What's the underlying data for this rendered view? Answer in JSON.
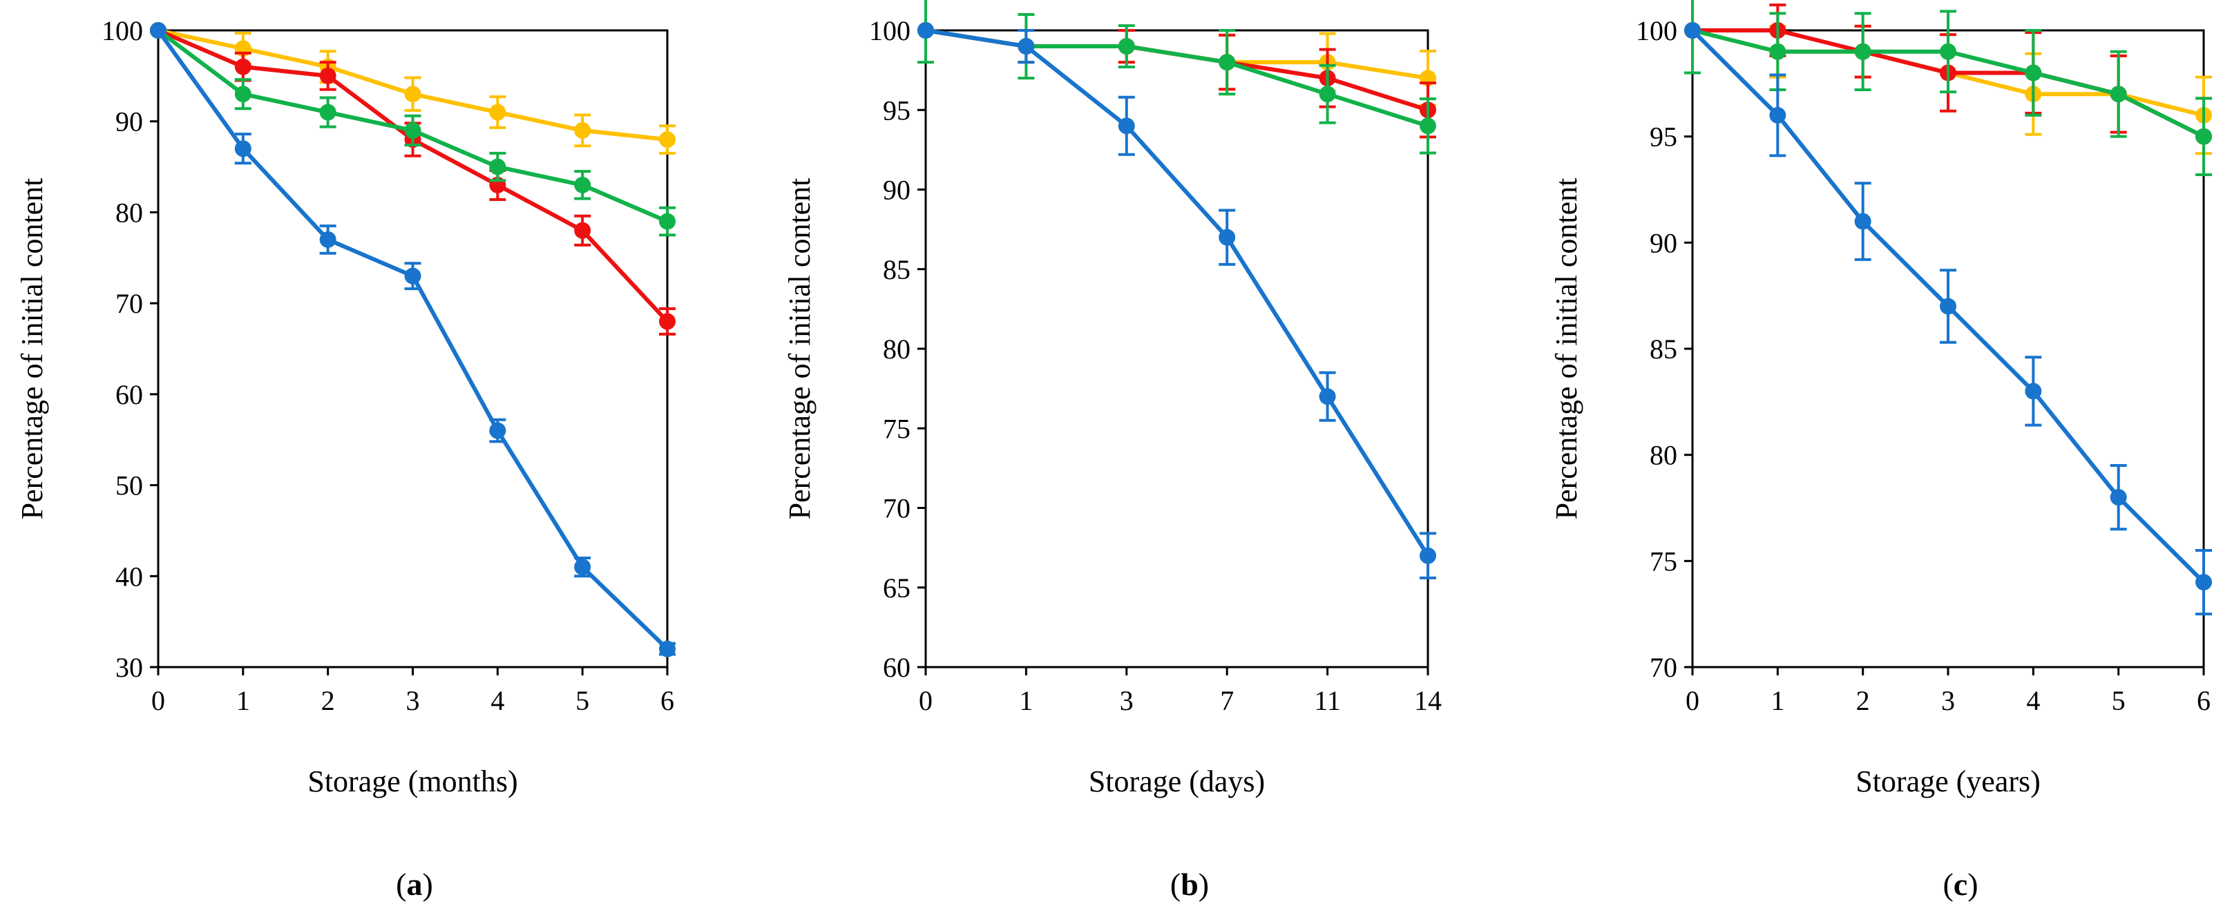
{
  "colors": {
    "blue": "#1874cd",
    "red": "#ee1111",
    "yellow": "#ffc000",
    "green": "#12b24a"
  },
  "chart_data": [
    {
      "panel": "a",
      "type": "line",
      "xlabel": "Storage (months)",
      "ylabel": "Percentage of initial content",
      "x_ticks": [
        "0",
        "1",
        "2",
        "3",
        "4",
        "5",
        "6"
      ],
      "y_ticks": [
        30,
        40,
        50,
        60,
        70,
        80,
        90,
        100
      ],
      "ylim": [
        30,
        100
      ],
      "series": [
        {
          "color": "yellow",
          "values": [
            100,
            98,
            96,
            93,
            91,
            89,
            88
          ],
          "errors": [
            0,
            1.7,
            1.7,
            1.8,
            1.7,
            1.7,
            1.5
          ]
        },
        {
          "color": "red",
          "values": [
            100,
            96,
            95,
            88,
            83,
            78,
            68
          ],
          "errors": [
            0,
            1.5,
            1.5,
            1.8,
            1.6,
            1.6,
            1.4
          ]
        },
        {
          "color": "green",
          "values": [
            100,
            93,
            91,
            89,
            85,
            83,
            79
          ],
          "errors": [
            0,
            1.6,
            1.6,
            1.6,
            1.5,
            1.5,
            1.5
          ]
        },
        {
          "color": "blue",
          "values": [
            100,
            87,
            77,
            73,
            56,
            41,
            32
          ],
          "errors": [
            0,
            1.6,
            1.5,
            1.4,
            1.2,
            1.0,
            0.6
          ]
        }
      ]
    },
    {
      "panel": "b",
      "type": "line",
      "xlabel": "Storage (days)",
      "ylabel": "Percentage of initial content",
      "x_ticks": [
        "0",
        "1",
        "3",
        "7",
        "11",
        "14"
      ],
      "y_ticks": [
        60,
        65,
        70,
        75,
        80,
        85,
        90,
        95,
        100
      ],
      "ylim": [
        60,
        100
      ],
      "series": [
        {
          "color": "yellow",
          "values": [
            100,
            99,
            99,
            98,
            98,
            97
          ],
          "errors": [
            0,
            1.0,
            1.0,
            1.7,
            1.8,
            1.7
          ]
        },
        {
          "color": "red",
          "values": [
            100,
            99,
            99,
            98,
            97,
            95
          ],
          "errors": [
            0,
            1.0,
            1.0,
            1.7,
            1.8,
            1.7
          ]
        },
        {
          "color": "green",
          "values": [
            100,
            99,
            99,
            98,
            96,
            94
          ],
          "errors": [
            2.0,
            2.0,
            1.3,
            2.0,
            1.8,
            1.7
          ]
        },
        {
          "color": "blue",
          "values": [
            100,
            99,
            94,
            87,
            77,
            67
          ],
          "errors": [
            0,
            1.0,
            1.8,
            1.7,
            1.5,
            1.4
          ]
        }
      ]
    },
    {
      "panel": "c",
      "type": "line",
      "xlabel": "Storage (years)",
      "ylabel": "Percentage of initial content",
      "x_ticks": [
        "0",
        "1",
        "2",
        "3",
        "4",
        "5",
        "6"
      ],
      "y_ticks": [
        70,
        75,
        80,
        85,
        90,
        95,
        100
      ],
      "ylim": [
        70,
        100
      ],
      "series": [
        {
          "color": "yellow",
          "values": [
            100,
            99,
            99,
            98,
            97,
            97,
            96
          ],
          "errors": [
            0,
            1.2,
            1.2,
            1.8,
            1.9,
            1.8,
            1.8
          ]
        },
        {
          "color": "red",
          "values": [
            100,
            100,
            99,
            98,
            98,
            97,
            95
          ],
          "errors": [
            0,
            1.2,
            1.2,
            1.8,
            1.9,
            1.8,
            1.8
          ]
        },
        {
          "color": "green",
          "values": [
            100,
            99,
            99,
            99,
            98,
            97,
            95
          ],
          "errors": [
            2.0,
            1.8,
            1.8,
            1.9,
            2.0,
            2.0,
            1.8
          ]
        },
        {
          "color": "blue",
          "values": [
            100,
            96,
            91,
            87,
            83,
            78,
            74
          ],
          "errors": [
            0,
            1.9,
            1.8,
            1.7,
            1.6,
            1.5,
            1.5
          ]
        }
      ]
    }
  ],
  "panel_labels": [
    "a",
    "b",
    "c"
  ]
}
